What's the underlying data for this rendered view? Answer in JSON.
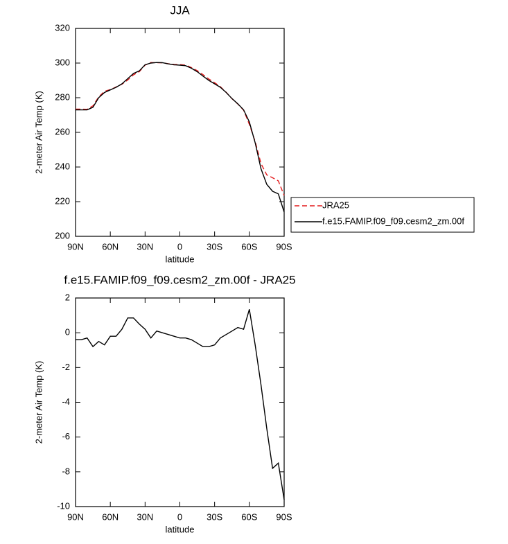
{
  "chart_data": [
    {
      "type": "line",
      "title": "JJA",
      "x_label": "latitude",
      "y_label": "2-meter Air Temp (K)",
      "x": [
        90,
        85,
        80,
        75,
        70,
        65,
        60,
        55,
        50,
        45,
        40,
        35,
        30,
        25,
        20,
        15,
        10,
        5,
        0,
        -5,
        -10,
        -15,
        -20,
        -25,
        -30,
        -35,
        -40,
        -45,
        -50,
        -55,
        -60,
        -65,
        -70,
        -75,
        -80,
        -85,
        -90
      ],
      "xlim": [
        90,
        -90
      ],
      "xticks": [
        {
          "value": 90,
          "label": "90N"
        },
        {
          "value": 60,
          "label": "60N"
        },
        {
          "value": 30,
          "label": "30N"
        },
        0,
        {
          "value": -30,
          "label": "30S"
        },
        {
          "value": -60,
          "label": "60S"
        },
        {
          "value": -90,
          "label": "90S"
        }
      ],
      "ylim": [
        200,
        320
      ],
      "yticks": [
        200,
        220,
        240,
        260,
        280,
        300,
        320
      ],
      "legend": "outside-right",
      "series": [
        {
          "name": "JRA25",
          "color": "#e41a1c",
          "dashed": true,
          "values": [
            273.4,
            273.4,
            273.3,
            275.3,
            280.5,
            283.7,
            284.7,
            286.2,
            287.8,
            290.2,
            293.2,
            295,
            298.8,
            300.3,
            300.2,
            300.2,
            299.6,
            299.2,
            299.1,
            298.8,
            297.4,
            295.6,
            293.3,
            290.8,
            288.7,
            286.3,
            283.1,
            279.4,
            276.4,
            272.8,
            264.6,
            254.7,
            242,
            235.5,
            233.8,
            232,
            223.6
          ]
        },
        {
          "name": "f.e15.FAMIP.f09_f09.cesm2_zm.00f",
          "color": "#000000",
          "dashed": false,
          "values": [
            273,
            273,
            273,
            274.5,
            280,
            283,
            284.5,
            286,
            288,
            291,
            294,
            295.5,
            299,
            300,
            300.3,
            300.2,
            299.5,
            299,
            298.8,
            298.5,
            297,
            295,
            292.5,
            290,
            288,
            286,
            283,
            279.5,
            276.5,
            273,
            266,
            254,
            239,
            230,
            226,
            224.5,
            214
          ]
        }
      ]
    },
    {
      "type": "line",
      "title": "f.e15.FAMIP.f09_f09.cesm2_zm.00f - JRA25",
      "x_label": "latitude",
      "y_label": "2-meter Air Temp (K)",
      "x": [
        90,
        85,
        80,
        75,
        70,
        65,
        60,
        55,
        50,
        45,
        40,
        35,
        30,
        25,
        20,
        15,
        10,
        5,
        0,
        -5,
        -10,
        -15,
        -20,
        -25,
        -30,
        -35,
        -40,
        -45,
        -50,
        -55,
        -60,
        -65,
        -70,
        -75,
        -80,
        -85,
        -90
      ],
      "xlim": [
        90,
        -90
      ],
      "xticks": [
        {
          "value": 90,
          "label": "90N"
        },
        {
          "value": 60,
          "label": "60N"
        },
        {
          "value": 30,
          "label": "30N"
        },
        0,
        {
          "value": -30,
          "label": "30S"
        },
        {
          "value": -60,
          "label": "60S"
        },
        {
          "value": -90,
          "label": "90S"
        }
      ],
      "ylim": [
        -10,
        2
      ],
      "yticks": [
        -10,
        -8,
        -6,
        -4,
        -2,
        0,
        2
      ],
      "color": "#000000",
      "values": [
        -0.4,
        -0.4,
        -0.3,
        -0.8,
        -0.5,
        -0.7,
        -0.2,
        -0.2,
        0.2,
        0.85,
        0.85,
        0.5,
        0.2,
        -0.3,
        0.1,
        0,
        -0.1,
        -0.2,
        -0.3,
        -0.3,
        -0.4,
        -0.6,
        -0.8,
        -0.8,
        -0.7,
        -0.3,
        -0.1,
        0.1,
        0.3,
        0.2,
        1.35,
        -0.7,
        -3.0,
        -5.5,
        -7.8,
        -7.5,
        -9.6
      ]
    }
  ]
}
